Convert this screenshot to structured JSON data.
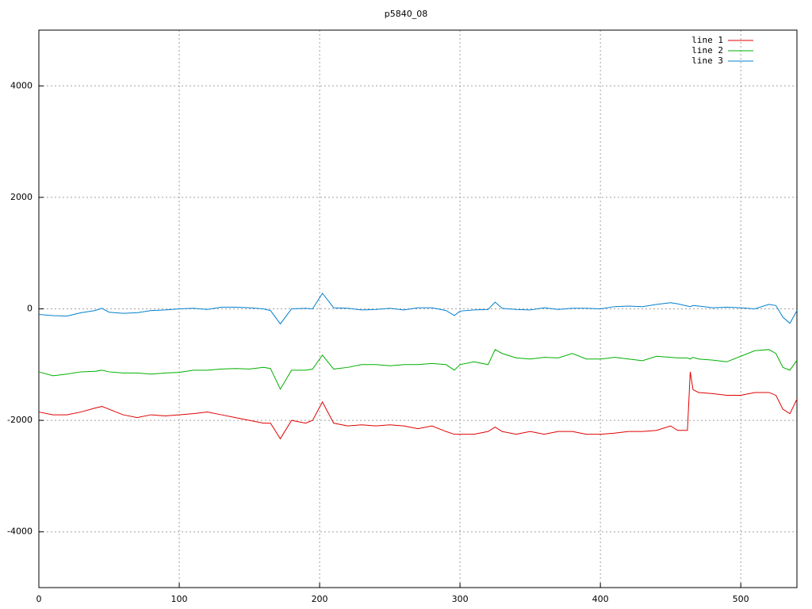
{
  "chart_data": {
    "type": "line",
    "title": "p5840_08",
    "x": [
      0,
      10,
      20,
      30,
      40,
      45,
      50,
      60,
      70,
      80,
      90,
      100,
      110,
      120,
      130,
      140,
      150,
      160,
      165,
      172,
      180,
      190,
      195,
      202,
      210,
      220,
      230,
      240,
      250,
      260,
      270,
      280,
      290,
      296,
      300,
      310,
      320,
      325,
      330,
      340,
      350,
      360,
      370,
      380,
      390,
      400,
      410,
      420,
      430,
      440,
      450,
      455,
      462,
      464,
      466,
      470,
      480,
      490,
      500,
      510,
      520,
      525,
      530,
      535,
      540
    ],
    "series": [
      {
        "name": "line 1",
        "color": "#e00000",
        "values": [
          -1850,
          -1900,
          -1900,
          -1850,
          -1780,
          -1750,
          -1800,
          -1900,
          -1950,
          -1900,
          -1920,
          -1900,
          -1880,
          -1850,
          -1900,
          -1950,
          -2000,
          -2050,
          -2050,
          -2330,
          -2000,
          -2050,
          -2000,
          -1670,
          -2050,
          -2100,
          -2080,
          -2100,
          -2080,
          -2100,
          -2150,
          -2100,
          -2200,
          -2250,
          -2250,
          -2250,
          -2200,
          -2120,
          -2200,
          -2250,
          -2200,
          -2250,
          -2200,
          -2200,
          -2250,
          -2250,
          -2230,
          -2200,
          -2200,
          -2180,
          -2100,
          -2180,
          -2180,
          -1130,
          -1450,
          -1500,
          -1520,
          -1550,
          -1550,
          -1500,
          -1500,
          -1550,
          -1800,
          -1880,
          -1620
        ]
      },
      {
        "name": "line 2",
        "color": "#00b000",
        "values": [
          -1130,
          -1200,
          -1170,
          -1130,
          -1120,
          -1100,
          -1130,
          -1150,
          -1150,
          -1170,
          -1150,
          -1140,
          -1100,
          -1100,
          -1080,
          -1070,
          -1080,
          -1050,
          -1070,
          -1440,
          -1100,
          -1100,
          -1080,
          -830,
          -1080,
          -1050,
          -1000,
          -1000,
          -1020,
          -1000,
          -1000,
          -980,
          -1000,
          -1100,
          -1000,
          -950,
          -1000,
          -730,
          -800,
          -880,
          -900,
          -870,
          -880,
          -800,
          -900,
          -900,
          -870,
          -900,
          -930,
          -850,
          -870,
          -880,
          -880,
          -900,
          -870,
          -900,
          -920,
          -950,
          -850,
          -750,
          -730,
          -800,
          -1050,
          -1100,
          -920
        ]
      },
      {
        "name": "line 3",
        "color": "#0080d0",
        "values": [
          -100,
          -120,
          -130,
          -70,
          -30,
          10,
          -60,
          -80,
          -70,
          -30,
          -20,
          0,
          10,
          -10,
          30,
          30,
          20,
          0,
          -30,
          -270,
          0,
          10,
          0,
          280,
          20,
          10,
          -20,
          -10,
          10,
          -20,
          20,
          20,
          -30,
          -120,
          -40,
          -20,
          -10,
          120,
          10,
          -10,
          -20,
          20,
          -10,
          10,
          10,
          0,
          40,
          50,
          40,
          80,
          110,
          90,
          50,
          40,
          60,
          50,
          20,
          30,
          20,
          0,
          80,
          60,
          -150,
          -260,
          -30
        ]
      }
    ],
    "xlim": [
      0,
      540
    ],
    "xticks": [
      0,
      100,
      200,
      300,
      400,
      500
    ],
    "ylim": [
      -5000,
      5000
    ],
    "yticks": [
      -4000,
      -2000,
      0,
      2000,
      4000
    ],
    "grid": true,
    "legend": "upper right"
  }
}
